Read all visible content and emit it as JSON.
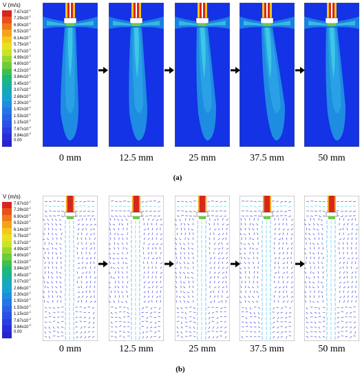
{
  "legend": {
    "title": "V (m/s)",
    "labels": [
      {
        "m": "7.67",
        "e": "-1"
      },
      {
        "m": "7.29",
        "e": "-1"
      },
      {
        "m": "6.90",
        "e": "-1"
      },
      {
        "m": "6.52",
        "e": "-1"
      },
      {
        "m": "6.14",
        "e": "-1"
      },
      {
        "m": "5.75",
        "e": "-1"
      },
      {
        "m": "5.37",
        "e": "-1"
      },
      {
        "m": "4.99",
        "e": "-1"
      },
      {
        "m": "4.60",
        "e": "-1"
      },
      {
        "m": "4.22",
        "e": "-1"
      },
      {
        "m": "3.84",
        "e": "-1"
      },
      {
        "m": "3.45",
        "e": "-1"
      },
      {
        "m": "3.07",
        "e": "-1"
      },
      {
        "m": "2.68",
        "e": "-1"
      },
      {
        "m": "2.30",
        "e": "-1"
      },
      {
        "m": "1.92",
        "e": "-1"
      },
      {
        "m": "1.53",
        "e": "-1"
      },
      {
        "m": "1.15",
        "e": "-1"
      },
      {
        "m": "7.67",
        "e": "-2"
      },
      {
        "m": "3.84",
        "e": "-2"
      },
      {
        "m": "0.00",
        "e": ""
      }
    ],
    "colors": [
      "#d7261e",
      "#e8501c",
      "#f07a1a",
      "#f5a31a",
      "#f5c81c",
      "#e8e020",
      "#c8e428",
      "#9ad830",
      "#6ccc3c",
      "#3cc050",
      "#1eb878",
      "#18b09c",
      "#16a8bc",
      "#1aa0d4",
      "#1e8ce0",
      "#2478e4",
      "#2864e6",
      "#2c50e6",
      "#2c3ee0",
      "#2a2ed8",
      "#2626c8"
    ]
  },
  "captions": [
    "0 mm",
    "12.5 mm",
    "25 mm",
    "37.5 mm",
    "50 mm"
  ],
  "sublabels": {
    "a": "(a)",
    "b": "(b)"
  },
  "colors": {
    "background": "#1432e6",
    "jet_light": "#3cc8e6",
    "jet_mid": "#2aa0e6",
    "nozzle": "#d7261e",
    "vector": "#1a2ad0"
  }
}
